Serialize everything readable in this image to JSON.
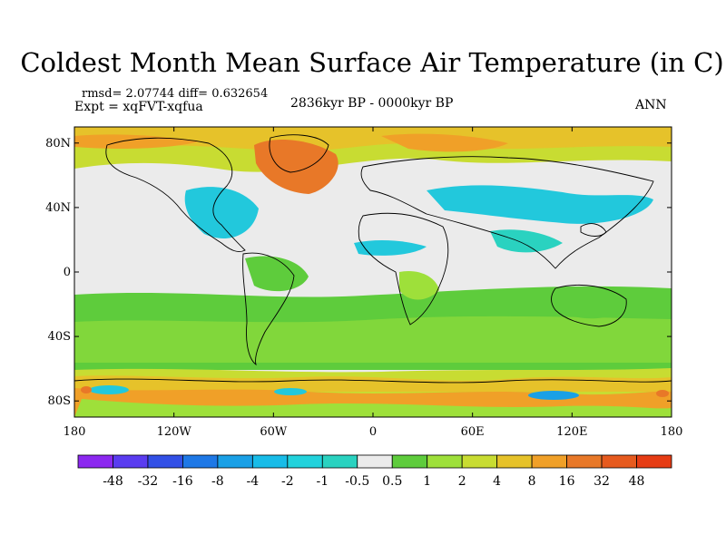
{
  "header": {
    "title": "Coldest Month Mean Surface Air Temperature (in C)",
    "stats": "rmsd= 2.07744  diff= 0.632654",
    "experiment": "Expt = xqFVT-xqfua",
    "period": "2836kyr BP - 0000kyr BP",
    "season": "ANN"
  },
  "map": {
    "lat_ticks": [
      "80N",
      "40N",
      "0",
      "40S",
      "80S"
    ],
    "lon_ticks": [
      "180",
      "120W",
      "60W",
      "0",
      "60E",
      "120E",
      "180"
    ],
    "colors": {
      "neutral": "#ebebeb",
      "green": "#5ecc3c",
      "light_green": "#9ee03a",
      "yellow_green": "#c8dc32",
      "gold": "#e6c22a",
      "orange": "#f0a028",
      "dark_orange": "#e87828",
      "cyan": "#22c8dc",
      "teal": "#2ad2c0",
      "blue": "#1aa0e6",
      "coast": "#000000"
    }
  },
  "colorbar": {
    "labels": [
      "-48",
      "-32",
      "-16",
      "-8",
      "-4",
      "-2",
      "-1",
      "-0.5",
      "0.5",
      "1",
      "2",
      "4",
      "8",
      "16",
      "32",
      "48"
    ],
    "colors": [
      "#8c28f0",
      "#5a3cf0",
      "#3250e6",
      "#1e78e6",
      "#1aa0e6",
      "#18bce8",
      "#22d2dc",
      "#2ad2c0",
      "#ebebeb",
      "#5ecc3c",
      "#9ee03a",
      "#c8dc32",
      "#e6c22a",
      "#f0a028",
      "#e87828",
      "#e65a1e",
      "#e63c14"
    ]
  }
}
